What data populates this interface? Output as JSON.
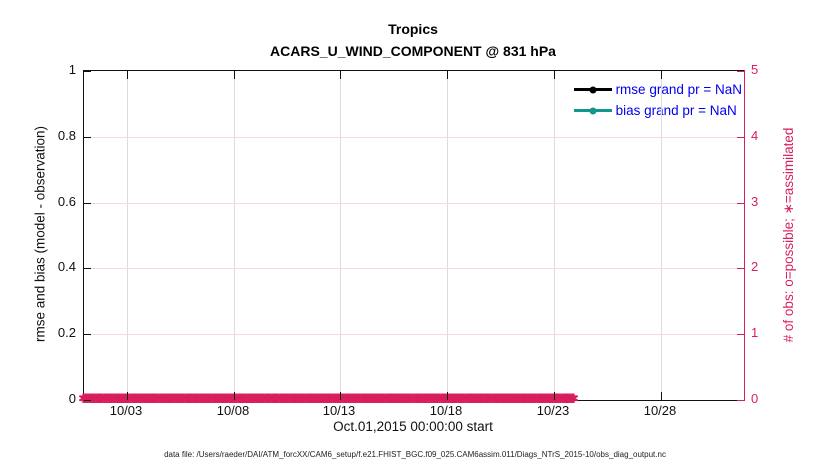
{
  "figure": {
    "title": "Tropics",
    "subtitle": "ACARS_U_WIND_COMPONENT @ 831 hPa",
    "xlabel": "Oct.01,2015 00:00:00 start",
    "ylabel_left": "rmse and bias (model - observation)",
    "ylabel_right": "# of obs: o=possible; ∗=assimilated",
    "footer": "data file: /Users/raeder/DAI/ATM_forcXX/CAM6_setup/f.e21.FHIST_BGC.f09_025.CAM6assim.011/Diags_NTrS_2015-10/obs_diag_output.nc"
  },
  "legend": {
    "text_color": "#0000ee",
    "items": [
      {
        "label": "rmse grand pr = NaN",
        "color": "#000000"
      },
      {
        "label": "bias grand pr = NaN",
        "color": "#12968d"
      }
    ]
  },
  "chart_data": {
    "type": "line",
    "title": "Tropics",
    "subtitle": "ACARS_U_WIND_COMPONENT @ 831 hPa",
    "xlabel": "Oct.01,2015 00:00:00 start",
    "x_axis": {
      "start": "Oct.01,2015 00:00:00",
      "tick_labels": [
        "10/03",
        "10/08",
        "10/13",
        "10/18",
        "10/23",
        "10/28"
      ],
      "tick_days_from_start": [
        2,
        7,
        12,
        17,
        22,
        27
      ],
      "range_days": [
        0,
        30.9
      ],
      "grid_color": "#dcdcdc"
    },
    "left_axis": {
      "label": "rmse and bias (model - observation)",
      "lim": [
        0,
        1
      ],
      "ticks": [
        0,
        0.2,
        0.4,
        0.6,
        0.8,
        1
      ],
      "color": "#111111"
    },
    "right_axis": {
      "label": "# of obs: o=possible; ∗=assimilated",
      "lim": [
        0,
        5
      ],
      "ticks": [
        0,
        1,
        2,
        3,
        4,
        5
      ],
      "color": "#d81e5f",
      "grid_color": "#f6d8e4"
    },
    "series": [
      {
        "name": "rmse grand pr = NaN",
        "color": "#000000",
        "grand_mean": "NaN",
        "values": []
      },
      {
        "name": "bias grand pr = NaN",
        "color": "#12968d",
        "grand_mean": "NaN",
        "values": []
      }
    ],
    "obs_count_markers": {
      "marker": "✱",
      "color": "#d81e5f",
      "y_value": 0,
      "note": "dense row of asterisk markers at count 0 spanning the full date range"
    }
  }
}
